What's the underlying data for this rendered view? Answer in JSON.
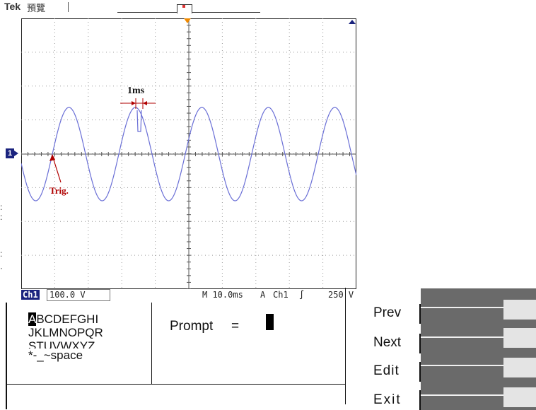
{
  "header": {
    "brand": "Tek",
    "mode": "預覽"
  },
  "scope": {
    "annotations": {
      "interval": "1ms",
      "trigger": "Trig."
    },
    "channel_marker": "1",
    "status": {
      "channel_badge": "Ch1",
      "volts_per_div": "100.0 V",
      "timebase": "M 10.0ms",
      "trigger_source": "A",
      "trigger_channel": "Ch1",
      "trigger_level": "250 V"
    }
  },
  "keyboard": {
    "selected_char": "A",
    "rows": [
      "BCDEFGHI",
      "JKLMNOPQR",
      "STUVWXYZ",
      "*-_~space"
    ],
    "prompt_label": "Prompt",
    "prompt_eq": "="
  },
  "softkeys": {
    "prev": "Prev",
    "next": "Next",
    "edit": "Edit",
    "exit": "Exit"
  },
  "colors": {
    "waveform": "#6a6fd6",
    "annotation": "#b00000",
    "grid": "#999999",
    "softkey_bg": "#6a6a6a",
    "badge": "#1a237e",
    "trigger_marker": "#f08a00"
  }
}
